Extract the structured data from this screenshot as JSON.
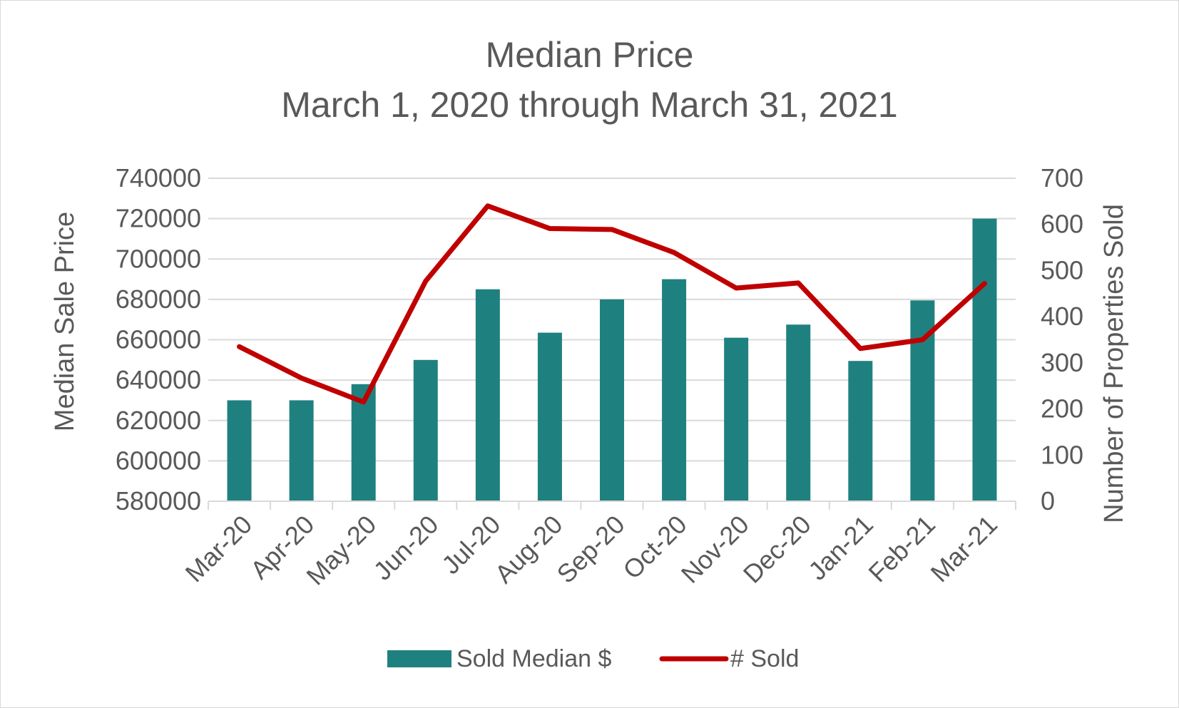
{
  "chart_data": {
    "type": "bar",
    "title": "Median Price",
    "subtitle": "March 1, 2020 through March 31, 2021",
    "categories": [
      "Mar-20",
      "Apr-20",
      "May-20",
      "Jun-20",
      "Jul-20",
      "Aug-20",
      "Sep-20",
      "Oct-20",
      "Nov-20",
      "Dec-20",
      "Jan-21",
      "Feb-21",
      "Mar-21"
    ],
    "series": [
      {
        "name": "Sold Median $",
        "type": "bar",
        "axis": "left",
        "color": "#1f817f",
        "values": [
          630000,
          630000,
          638000,
          650000,
          685000,
          663500,
          680000,
          690000,
          661000,
          667500,
          649500,
          679500,
          720000
        ]
      },
      {
        "name": "# Sold",
        "type": "line",
        "axis": "right",
        "color": "#c00000",
        "values": [
          335,
          267,
          215,
          477,
          640,
          591,
          589,
          539,
          462,
          473,
          331,
          350,
          472
        ]
      }
    ],
    "ylabel": "Median Sale Price",
    "y2label": "Number of Properties Sold",
    "ylim": [
      580000,
      740000
    ],
    "yticks": [
      "580000",
      "600000",
      "620000",
      "640000",
      "660000",
      "680000",
      "700000",
      "720000",
      "740000"
    ],
    "y2lim": [
      0,
      700
    ],
    "y2ticks": [
      "0",
      "100",
      "200",
      "300",
      "400",
      "500",
      "600",
      "700"
    ],
    "grid": true,
    "legend": "bottom"
  }
}
